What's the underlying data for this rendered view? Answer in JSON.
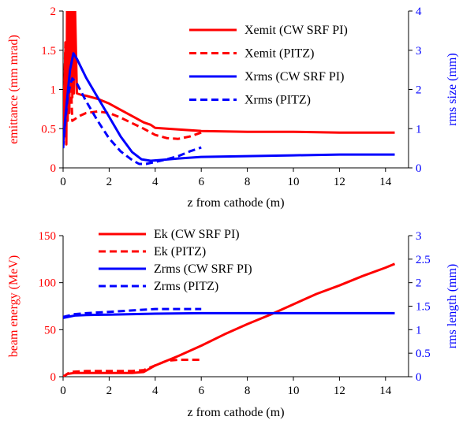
{
  "colors": {
    "red": "#ff0000",
    "blue": "#0000ff",
    "axis": "#000000"
  },
  "chart_data": [
    {
      "type": "line",
      "xlabel": "z from cathode (m)",
      "ylabel_left": "emittance (mm mrad)",
      "ylabel_right": "rms size (mm)",
      "xlim": [
        0,
        15
      ],
      "ylim_left": [
        0,
        2
      ],
      "ylim_right": [
        0,
        4
      ],
      "xticks": [
        "0",
        "2",
        "4",
        "6",
        "8",
        "10",
        "12",
        "14"
      ],
      "yticks_left": [
        "0",
        "0.5",
        "1",
        "1.5",
        "2"
      ],
      "yticks_right": [
        "0",
        "1",
        "2",
        "3",
        "4"
      ],
      "legend_position": "top-right",
      "series": [
        {
          "name": "Xemit (CW SRF PI)",
          "axis": "left",
          "color": "#ff0000",
          "style": "solid",
          "x": [
            0,
            0.05,
            0.1,
            0.14,
            0.17,
            0.2,
            0.23,
            0.27,
            0.3,
            0.33,
            0.37,
            0.4,
            0.43,
            0.47,
            0.52,
            0.6,
            0.8,
            1.0,
            1.5,
            2.0,
            2.5,
            3.0,
            3.5,
            3.8,
            4.0,
            4.5,
            5.0,
            6.0,
            8.0,
            10.0,
            12.0,
            14.4
          ],
          "y": [
            0.5,
            1.0,
            1.5,
            0.3,
            2.0,
            0.6,
            2.0,
            0.7,
            2.0,
            1.0,
            2.0,
            0.9,
            2.0,
            0.95,
            2.0,
            0.95,
            0.93,
            0.92,
            0.88,
            0.82,
            0.74,
            0.66,
            0.58,
            0.55,
            0.51,
            0.5,
            0.49,
            0.47,
            0.46,
            0.46,
            0.45,
            0.45
          ]
        },
        {
          "name": "Xemit (PITZ)",
          "axis": "left",
          "color": "#ff0000",
          "style": "dashed",
          "x": [
            0,
            0.05,
            0.1,
            0.15,
            0.2,
            0.25,
            0.3,
            0.35,
            0.4,
            0.5,
            0.7,
            1.0,
            1.5,
            2.0,
            2.5,
            3.0,
            3.5,
            4.0,
            4.5,
            5.0,
            5.5,
            6.0
          ],
          "y": [
            0.4,
            1.0,
            1.6,
            0.6,
            1.8,
            0.7,
            2.0,
            1.0,
            0.6,
            0.62,
            0.66,
            0.7,
            0.72,
            0.7,
            0.64,
            0.57,
            0.5,
            0.42,
            0.38,
            0.37,
            0.4,
            0.45
          ]
        },
        {
          "name": "Xrms (CW SRF PI)",
          "axis": "right",
          "color": "#0000ff",
          "style": "solid",
          "x": [
            0,
            0.1,
            0.2,
            0.3,
            0.45,
            0.6,
            1.0,
            1.5,
            2.0,
            2.5,
            3.0,
            3.4,
            3.8,
            4.2,
            5.0,
            6.0,
            8.0,
            10.0,
            12.0,
            14.4
          ],
          "y": [
            0.6,
            1.3,
            1.9,
            2.5,
            2.92,
            2.78,
            2.3,
            1.8,
            1.3,
            0.8,
            0.4,
            0.22,
            0.18,
            0.2,
            0.24,
            0.28,
            0.3,
            0.32,
            0.34,
            0.34
          ]
        },
        {
          "name": "Xrms (PITZ)",
          "axis": "right",
          "color": "#0000ff",
          "style": "dashed",
          "x": [
            0,
            0.1,
            0.2,
            0.3,
            0.4,
            0.6,
            1.0,
            1.5,
            2.0,
            2.5,
            3.0,
            3.3,
            3.6,
            4.0,
            4.5,
            5.0,
            5.5,
            6.0
          ],
          "y": [
            0.5,
            1.2,
            1.8,
            2.1,
            2.28,
            2.15,
            1.7,
            1.2,
            0.75,
            0.42,
            0.2,
            0.1,
            0.1,
            0.15,
            0.22,
            0.3,
            0.42,
            0.52
          ]
        }
      ]
    },
    {
      "type": "line",
      "xlabel": "z from cathode (m)",
      "ylabel_left": "beam energy (MeV)",
      "ylabel_right": "rms length (mm)",
      "xlim": [
        0,
        15
      ],
      "ylim_left": [
        0,
        150
      ],
      "ylim_right": [
        0,
        3
      ],
      "xticks": [
        "0",
        "2",
        "4",
        "6",
        "8",
        "10",
        "12",
        "14"
      ],
      "yticks_left": [
        "0",
        "50",
        "100",
        "150"
      ],
      "yticks_right": [
        "0",
        "0.5",
        "1",
        "1.5",
        "2",
        "2.5",
        "3"
      ],
      "legend_position": "top-left",
      "series": [
        {
          "name": "Ek (CW SRF PI)",
          "axis": "left",
          "color": "#ff0000",
          "style": "solid",
          "x": [
            0,
            0.2,
            0.5,
            1.0,
            2.0,
            3.0,
            3.5,
            4.0,
            5.0,
            6.0,
            7.0,
            8.0,
            9.0,
            10.0,
            11.0,
            12.0,
            13.0,
            14.0,
            14.4
          ],
          "y": [
            0,
            3,
            4,
            4,
            4,
            4,
            5,
            12,
            22,
            33,
            45,
            56,
            66,
            77,
            88,
            97,
            107,
            116,
            120
          ]
        },
        {
          "name": "Ek (PITZ)",
          "axis": "left",
          "color": "#ff0000",
          "style": "dashed",
          "x": [
            0,
            0.3,
            1.0,
            2.0,
            3.0,
            3.5,
            4.0,
            4.5,
            5.0,
            5.5,
            6.0
          ],
          "y": [
            0,
            5,
            6,
            6,
            6,
            7,
            12,
            17,
            18,
            18,
            18
          ]
        },
        {
          "name": "Zrms (CW SRF PI)",
          "axis": "right",
          "color": "#0000ff",
          "style": "solid",
          "x": [
            0,
            0.5,
            1.0,
            2.0,
            4.0,
            6.0,
            8.0,
            10.0,
            12.0,
            14.4
          ],
          "y": [
            1.25,
            1.3,
            1.31,
            1.32,
            1.34,
            1.35,
            1.35,
            1.35,
            1.35,
            1.35
          ]
        },
        {
          "name": "Zrms (PITZ)",
          "axis": "right",
          "color": "#0000ff",
          "style": "dashed",
          "x": [
            0,
            0.5,
            1.0,
            2.0,
            3.0,
            4.0,
            5.0,
            6.0
          ],
          "y": [
            1.27,
            1.33,
            1.35,
            1.38,
            1.41,
            1.44,
            1.44,
            1.44
          ]
        }
      ]
    }
  ]
}
